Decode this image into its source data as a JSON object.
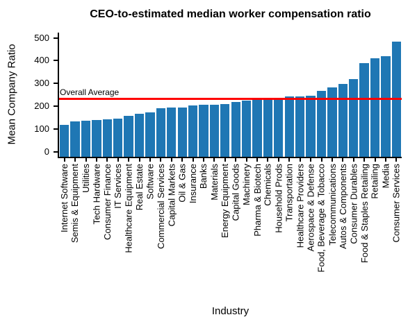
{
  "chart_data": {
    "type": "bar",
    "title": "CEO-to-estimated median worker compensation ratio",
    "xlabel": "Industry",
    "ylabel": "Mean Company Ratio",
    "categories": [
      "Internet Software",
      "Semis & Equipment",
      "Utilities",
      "Tech Hardware",
      "Consumer Finance",
      "IT Services",
      "Healthcare Equipment",
      "Real Estate",
      "Software",
      "Commercial Services",
      "Capital Markets",
      "Oil & Gas",
      "Insurance",
      "Banks",
      "Materials",
      "Energy Equipment",
      "Capital Goods",
      "Machinery",
      "Pharma & Biotech",
      "Chemicals",
      "Household Prods",
      "Transportation",
      "Healthcare Providers",
      "Aerospace & Defense",
      "Food, Beverage & Tobacco",
      "Telecommunications",
      "Autos & Components",
      "Consumer Durables",
      "Food & Staples Retailing",
      "Retailing",
      "Media",
      "Consumer Services"
    ],
    "values": [
      117,
      134,
      135,
      139,
      143,
      147,
      159,
      166,
      172,
      190,
      193,
      195,
      203,
      206,
      208,
      211,
      218,
      225,
      231,
      234,
      237,
      242,
      243,
      246,
      268,
      283,
      299,
      320,
      390,
      409,
      420,
      483
    ],
    "yticks": [
      0,
      100,
      200,
      300,
      400,
      500
    ],
    "ylim": [
      -22,
      523
    ],
    "grid": false,
    "legend": null,
    "bar_color": "#1f77b4",
    "reference_line": {
      "label": "Overall Average",
      "value": 233,
      "color": "#ff0000"
    }
  }
}
